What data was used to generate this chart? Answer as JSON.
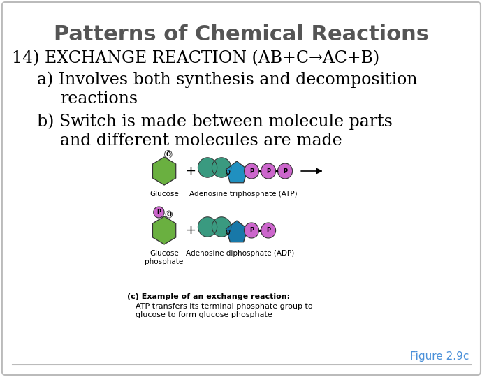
{
  "title": "Patterns of Chemical Reactions",
  "title_fontsize": 22,
  "title_color": "#555555",
  "line1_part1": "14) EXCHANGE REACTION (AB+C",
  "line1_arrow": "→",
  "line1_part2": "AC+B)",
  "line1_fontsize": 17,
  "body_fontsize": 17,
  "body_color": "#000000",
  "figure_label": "Figure 2.9c",
  "figure_label_color": "#4a90d9",
  "figure_label_fontsize": 11,
  "caption_fontsize": 8,
  "bg_color": "#ffffff",
  "border_color": "#bbbbbb",
  "glucose_color": "#6ab040",
  "blob_color": "#3a9a80",
  "phosphate_color": "#cc66cc",
  "pent_color1": "#2090c0",
  "pent_color2": "#1878a8",
  "label_fontsize": 7.5
}
